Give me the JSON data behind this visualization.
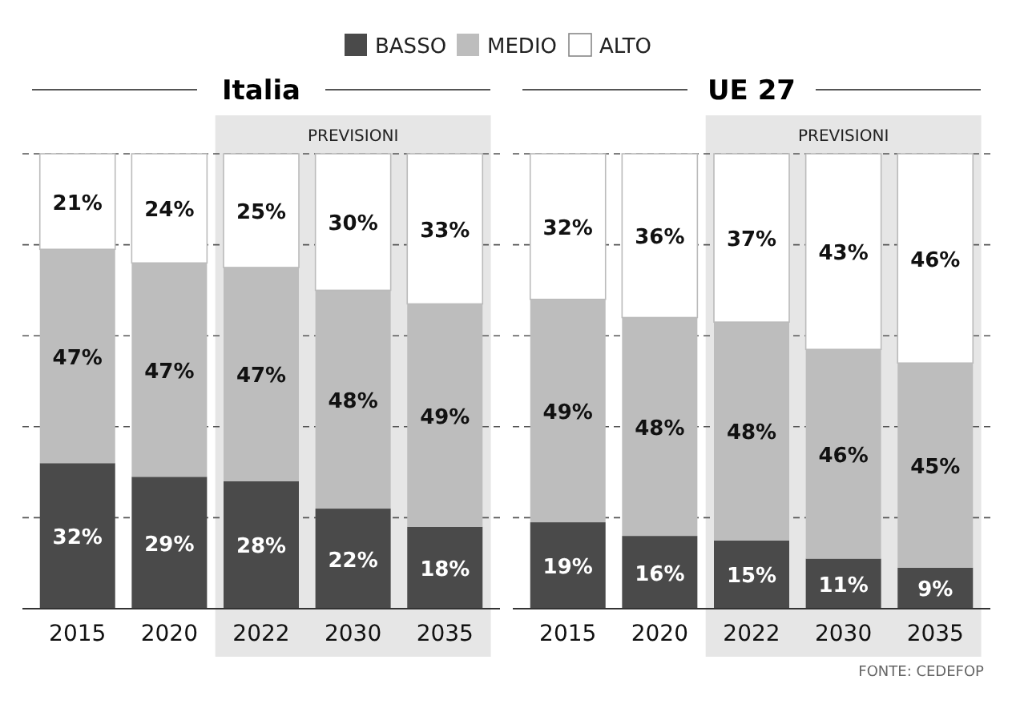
{
  "chart_data": [
    {
      "type": "bar",
      "title": "Italia",
      "categories": [
        "2015",
        "2020",
        "2022",
        "2030",
        "2035"
      ],
      "stacked": true,
      "ylim": [
        0,
        100
      ],
      "yticks": [
        {
          "value": 20,
          "label": null
        },
        {
          "value": 40,
          "label": null
        },
        {
          "value": 60,
          "label": null
        },
        {
          "value": 80,
          "label": null
        },
        {
          "value": 100,
          "label": null
        }
      ],
      "grid": "y",
      "tick_labels": "x",
      "legend": "top",
      "bands": [
        {
          "axis": "x",
          "from": "2022",
          "to": "2035",
          "label": "PREVISIONI",
          "color": "#e6e6e6"
        }
      ],
      "series": [
        {
          "name": "BASSO",
          "color": "#4a4a4a",
          "values": [
            32,
            29,
            28,
            22,
            18
          ],
          "value_labels": [
            "32%",
            "29%",
            "28%",
            "22%",
            "18%"
          ]
        },
        {
          "name": "MEDIO",
          "color": "#bdbdbd",
          "values": [
            47,
            47,
            47,
            48,
            49
          ],
          "value_labels": [
            "47%",
            "47%",
            "47%",
            "48%",
            "49%"
          ]
        },
        {
          "name": "ALTO",
          "color": "#ffffff",
          "values": [
            21,
            24,
            25,
            30,
            33
          ],
          "value_labels": [
            "21%",
            "24%",
            "25%",
            "30%",
            "33%"
          ]
        }
      ]
    },
    {
      "type": "bar",
      "title": "UE 27",
      "categories": [
        "2015",
        "2020",
        "2022",
        "2030",
        "2035"
      ],
      "stacked": true,
      "ylim": [
        0,
        100
      ],
      "yticks": [
        {
          "value": 20,
          "label": null
        },
        {
          "value": 40,
          "label": null
        },
        {
          "value": 60,
          "label": null
        },
        {
          "value": 80,
          "label": null
        },
        {
          "value": 100,
          "label": null
        }
      ],
      "grid": "y",
      "tick_labels": "x",
      "bands": [
        {
          "axis": "x",
          "from": "2022",
          "to": "2035",
          "label": "PREVISIONI",
          "color": "#e6e6e6"
        }
      ],
      "annotations": [
        "FONTE: CEDEFOP"
      ],
      "series": [
        {
          "color": "#4a4a4a",
          "values": [
            19,
            16,
            15,
            11,
            9
          ],
          "value_labels": [
            "19%",
            "16%",
            "15%",
            "11%",
            "9%"
          ]
        },
        {
          "color": "#bdbdbd",
          "values": [
            49,
            48,
            48,
            46,
            45
          ],
          "value_labels": [
            "49%",
            "48%",
            "48%",
            "46%",
            "45%"
          ]
        },
        {
          "color": "#ffffff",
          "values": [
            32,
            36,
            37,
            43,
            46
          ],
          "value_labels": [
            "32%",
            "36%",
            "37%",
            "43%",
            "46%"
          ]
        }
      ]
    }
  ]
}
